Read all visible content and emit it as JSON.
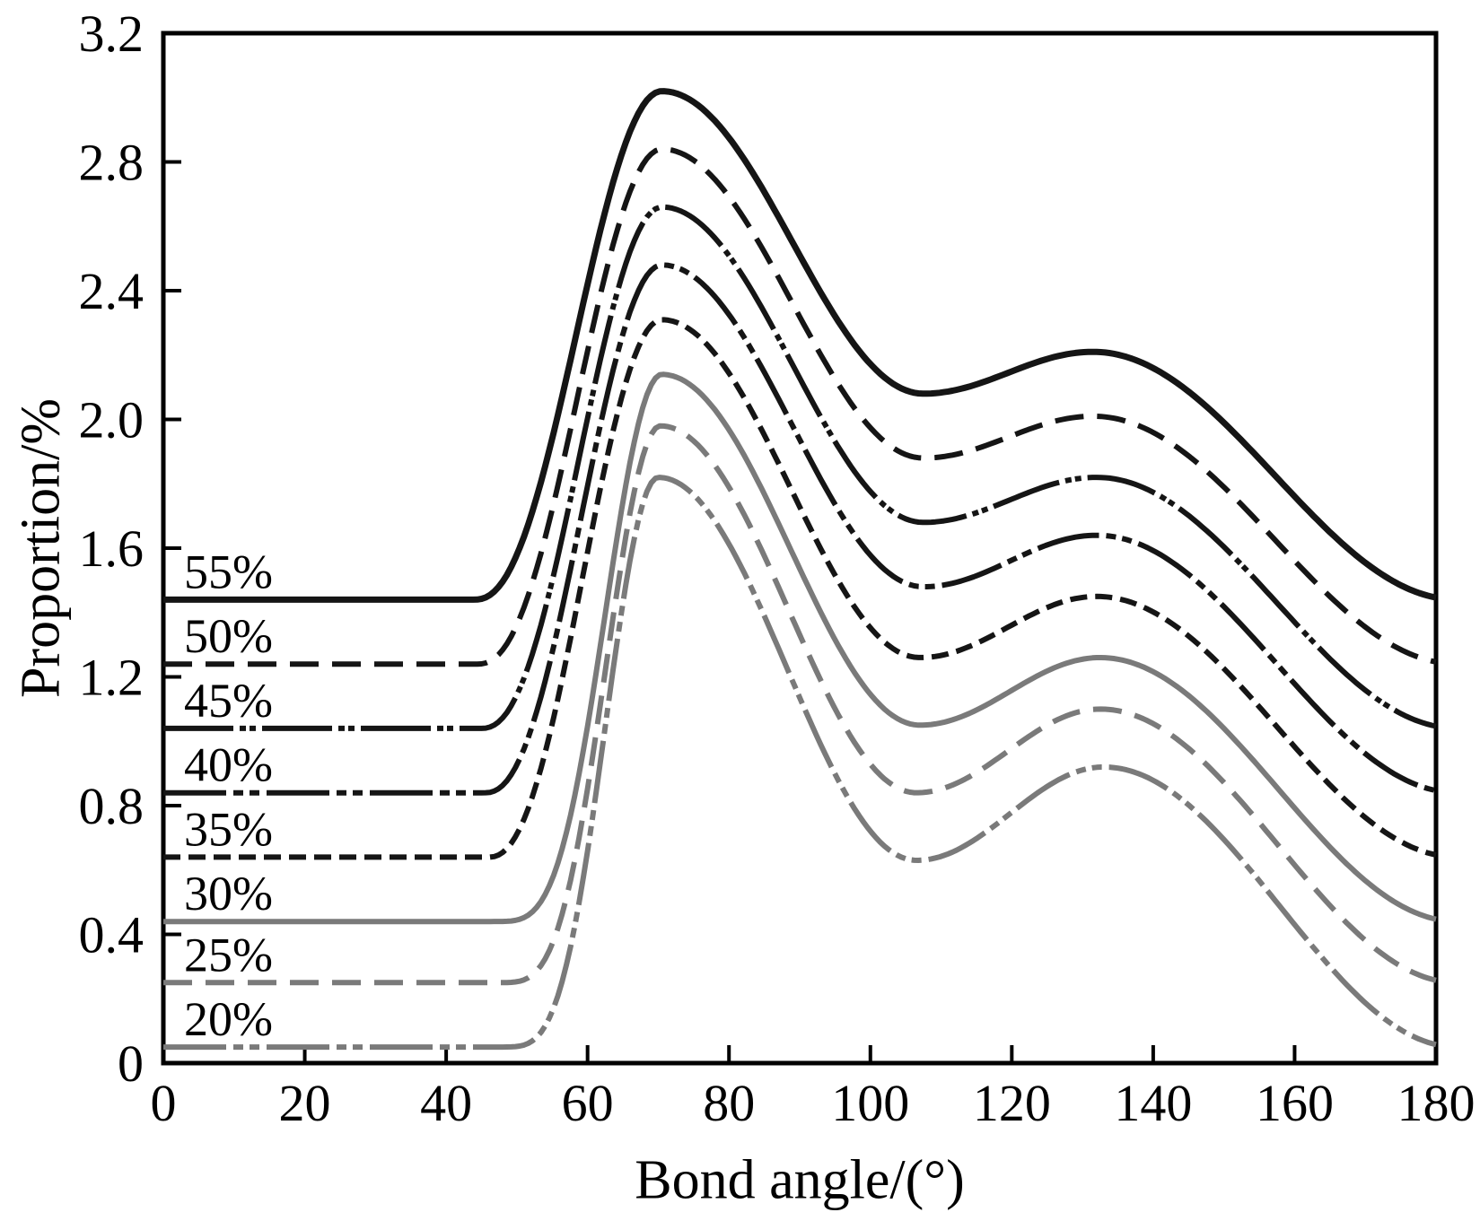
{
  "figure": {
    "background": "#ffffff",
    "axis_color": "#000000",
    "black_series_color": "#151515",
    "gray_series_color": "#7a7a7a"
  },
  "chart_data": {
    "type": "line",
    "title": "",
    "xlabel": "Bond angle/(°)",
    "ylabel": "Proportion/%",
    "xlim": [
      0,
      180
    ],
    "ylim": [
      0,
      3.2
    ],
    "grid": false,
    "legend_position": "inline labels at left end of each curve",
    "x_ticks": [
      "0",
      "20",
      "40",
      "60",
      "80",
      "100",
      "120",
      "140",
      "160",
      "180"
    ],
    "y_ticks": [
      "0",
      "0.4",
      "0.8",
      "1.2",
      "1.6",
      "2.0",
      "2.4",
      "2.8",
      "3.2"
    ],
    "x_tick_values": [
      0,
      20,
      40,
      60,
      80,
      100,
      120,
      140,
      160,
      180
    ],
    "y_tick_values": [
      0,
      0.4,
      0.8,
      1.2,
      1.6,
      2.0,
      2.4,
      2.8,
      3.2
    ],
    "series": [
      {
        "label": "55%",
        "color": "#151515",
        "line_style": "solid",
        "stroke_width": 7,
        "rise_power": 1.15,
        "key_points": {
          "baseline": 1.44,
          "rise_start": 44,
          "first_peak": {
            "x": 70.5,
            "y": 3.02
          },
          "valley": {
            "x": 107.5,
            "y": 2.08
          },
          "second_peak": {
            "x": 131.5,
            "y": 2.21
          },
          "end": {
            "x": 180,
            "y": 1.44
          }
        }
      },
      {
        "label": "50%",
        "color": "#151515",
        "line_style": "long-dash",
        "stroke_width": 6,
        "rise_power": 1.15,
        "key_points": {
          "baseline": 1.24,
          "rise_start": 44.5,
          "first_peak": {
            "x": 70.5,
            "y": 2.84
          },
          "valley": {
            "x": 107.5,
            "y": 1.88
          },
          "second_peak": {
            "x": 131.5,
            "y": 2.01
          },
          "end": {
            "x": 180,
            "y": 1.24
          }
        }
      },
      {
        "label": "45%",
        "color": "#151515",
        "line_style": "dash-dot-dot-fine",
        "stroke_width": 6,
        "rise_power": 1.15,
        "key_points": {
          "baseline": 1.04,
          "rise_start": 45,
          "first_peak": {
            "x": 70.5,
            "y": 2.66
          },
          "valley": {
            "x": 107.5,
            "y": 1.68
          },
          "second_peak": {
            "x": 132,
            "y": 1.82
          },
          "end": {
            "x": 180,
            "y": 1.05
          }
        }
      },
      {
        "label": "40%",
        "color": "#151515",
        "line_style": "dash-dot-dot",
        "stroke_width": 6,
        "rise_power": 1.15,
        "key_points": {
          "baseline": 0.84,
          "rise_start": 45.5,
          "first_peak": {
            "x": 70.5,
            "y": 2.48
          },
          "valley": {
            "x": 107.5,
            "y": 1.48
          },
          "second_peak": {
            "x": 132,
            "y": 1.64
          },
          "end": {
            "x": 180,
            "y": 0.86
          }
        }
      },
      {
        "label": "35%",
        "color": "#151515",
        "line_style": "short-dash",
        "stroke_width": 6,
        "rise_power": 1.15,
        "key_points": {
          "baseline": 0.64,
          "rise_start": 46,
          "first_peak": {
            "x": 70.5,
            "y": 2.31
          },
          "valley": {
            "x": 107,
            "y": 1.26
          },
          "second_peak": {
            "x": 132,
            "y": 1.45
          },
          "end": {
            "x": 180,
            "y": 0.66
          }
        }
      },
      {
        "label": "30%",
        "color": "#7a7a7a",
        "line_style": "solid",
        "stroke_width": 6,
        "rise_power": 2,
        "key_points": {
          "baseline": 0.44,
          "rise_start": 46.5,
          "first_peak": {
            "x": 70.5,
            "y": 2.14
          },
          "valley": {
            "x": 107,
            "y": 1.05
          },
          "second_peak": {
            "x": 132.5,
            "y": 1.26
          },
          "end": {
            "x": 180,
            "y": 0.45
          }
        }
      },
      {
        "label": "25%",
        "color": "#7a7a7a",
        "line_style": "long-dash",
        "stroke_width": 6,
        "rise_power": 2,
        "key_points": {
          "baseline": 0.25,
          "rise_start": 47,
          "first_peak": {
            "x": 70.3,
            "y": 1.98
          },
          "valley": {
            "x": 106.5,
            "y": 0.84
          },
          "second_peak": {
            "x": 132.5,
            "y": 1.1
          },
          "end": {
            "x": 180,
            "y": 0.27
          }
        }
      },
      {
        "label": "20%",
        "color": "#7a7a7a",
        "line_style": "dash-dot-dot",
        "stroke_width": 6,
        "rise_power": 2,
        "key_points": {
          "baseline": 0.05,
          "rise_start": 47.5,
          "first_peak": {
            "x": 70,
            "y": 1.82
          },
          "valley": {
            "x": 106.5,
            "y": 0.63
          },
          "second_peak": {
            "x": 133,
            "y": 0.92
          },
          "end": {
            "x": 180,
            "y": 0.06
          }
        }
      }
    ]
  }
}
